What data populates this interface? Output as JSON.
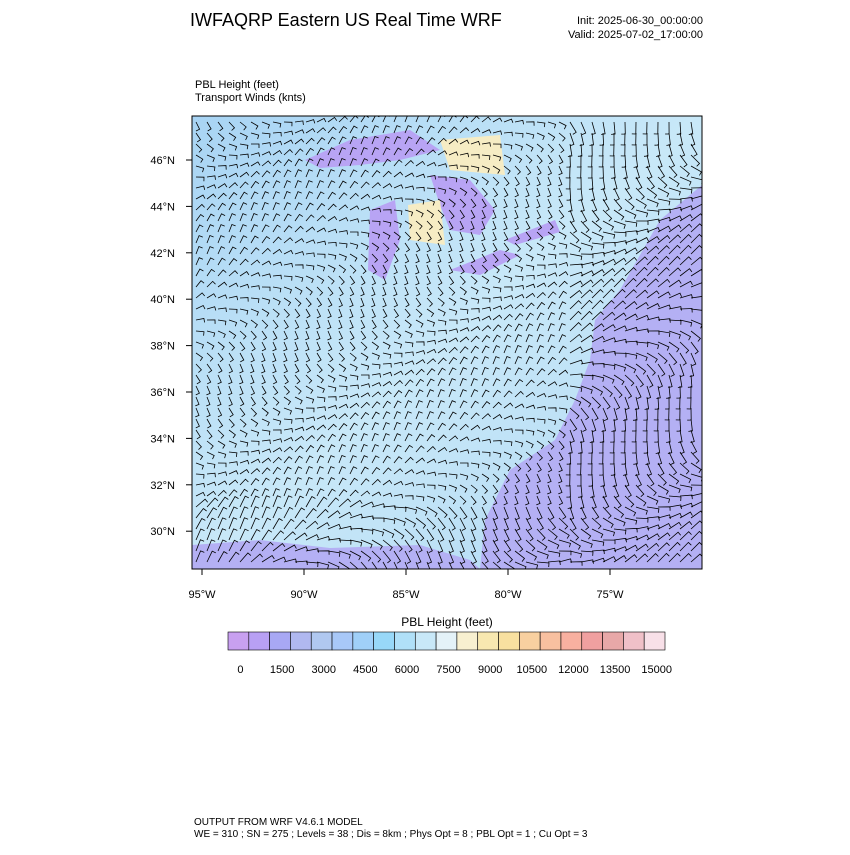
{
  "header": {
    "title": "IWFAQRP Eastern US Real Time WRF",
    "init": "Init: 2025-06-30_00:00:00",
    "valid": "Valid: 2025-07-02_17:00:00"
  },
  "fields": {
    "shaded": "PBL Height   (feet)",
    "vectors": "Transport Winds   (knts)"
  },
  "map": {
    "lat_labels": [
      "46°N",
      "44°N",
      "42°N",
      "40°N",
      "38°N",
      "36°N",
      "34°N",
      "32°N",
      "30°N"
    ],
    "lon_labels": [
      "95°W",
      "90°W",
      "85°W",
      "80°W",
      "75°W"
    ]
  },
  "colorbar": {
    "title": "PBL Height  (feet)",
    "ticks": [
      0,
      1500,
      3000,
      4500,
      6000,
      7500,
      9000,
      10500,
      12000,
      13500,
      15000
    ],
    "colors": [
      "#c8a0f0",
      "#b8a0f4",
      "#a8a8f4",
      "#b0b8f0",
      "#b0c8f0",
      "#a8c8f8",
      "#a0d0f8",
      "#98d8f8",
      "#b0e0f8",
      "#c8e8f8",
      "#e4f2f8",
      "#f8f0d0",
      "#f8e8b0",
      "#f8e0a0",
      "#f8d0a0",
      "#f8c0a0",
      "#f8b0a0",
      "#f0a0a0",
      "#e8a8a8",
      "#f0c0c8",
      "#f8e0e8"
    ]
  },
  "footer": {
    "line1": "OUTPUT FROM WRF V4.6.1 MODEL",
    "line2": "WE = 310 ; SN = 275 ; Levels = 38 ; Dis = 8km ; Phys Opt = 8 ; PBL Opt = 1 ; Cu Opt = 3"
  }
}
